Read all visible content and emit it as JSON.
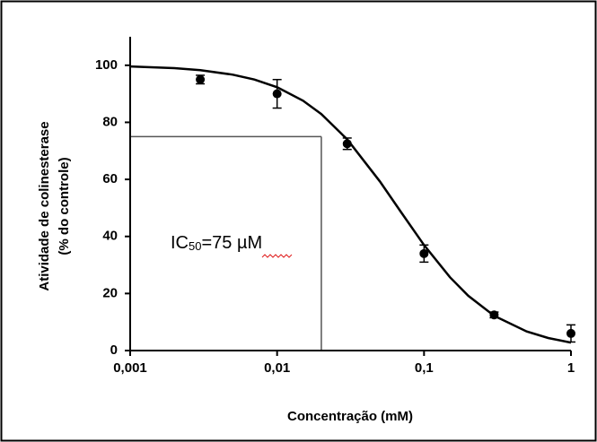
{
  "chart_data": {
    "type": "scatter",
    "xlabel": "Concentração (mM)",
    "ylabel": [
      "Atividade de colinesterase",
      "(% do controle)"
    ],
    "xscale": "log",
    "xlim": [
      0.001,
      1
    ],
    "xticks": [
      {
        "value": 0.001,
        "label": "0,001"
      },
      {
        "value": 0.01,
        "label": "0,01"
      },
      {
        "value": 0.1,
        "label": "0,1"
      },
      1
    ],
    "ylim": [
      0,
      110
    ],
    "yticks": [
      0,
      20,
      40,
      60,
      80,
      100
    ],
    "series": [
      {
        "color": "#000000",
        "x": [
          0.003,
          0.01,
          0.03,
          0.1,
          0.3,
          1
        ],
        "values": [
          95,
          90,
          72.5,
          34,
          12.5,
          6
        ],
        "errors": [
          1.5,
          5,
          2,
          3,
          1,
          3
        ]
      }
    ],
    "curve": {
      "color": "#000000",
      "x": [
        0.001,
        0.002,
        0.003,
        0.005,
        0.007,
        0.01,
        0.015,
        0.02,
        0.03,
        0.05,
        0.07,
        0.1,
        0.15,
        0.2,
        0.3,
        0.5,
        0.7,
        1
      ],
      "values": [
        99.6,
        99.0,
        98.3,
        96.7,
        95.0,
        92.3,
        87.6,
        82.9,
        74.0,
        59.3,
        48.4,
        37.0,
        25.7,
        19.2,
        12.2,
        6.7,
        4.4,
        2.8
      ]
    },
    "reference_lines": {
      "x": 0.02,
      "y": 75,
      "color": "#555555"
    },
    "annotation": {
      "parts": [
        "IC",
        "50",
        "=75 ",
        "µM"
      ]
    }
  }
}
